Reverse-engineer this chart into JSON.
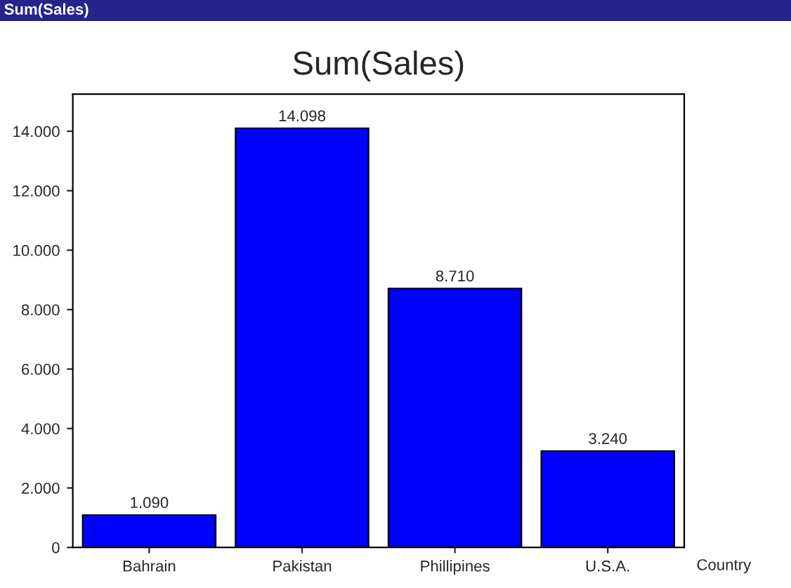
{
  "chart_data": {
    "type": "bar",
    "title": "Sum(Sales)",
    "annotations": [
      "Sum(Sales)"
    ],
    "xlabel": "Country",
    "categories": [
      "Bahrain",
      "Pakistan",
      "Phillipines",
      "U.S.A."
    ],
    "values": [
      1090,
      14098,
      8710,
      3240
    ],
    "value_labels": [
      "1.090",
      "14.098",
      "8.710",
      "3.240"
    ],
    "color": "#0000ff",
    "ylim": [
      0,
      15250
    ],
    "yticks": [
      {
        "value": 0,
        "label": "0"
      },
      {
        "value": 2000,
        "label": "2.000"
      },
      {
        "value": 4000,
        "label": "4.000"
      },
      {
        "value": 6000,
        "label": "6.000"
      },
      {
        "value": 8000,
        "label": "8.000"
      },
      {
        "value": 10000,
        "label": "10.000"
      },
      {
        "value": 12000,
        "label": "12.000"
      },
      {
        "value": 14000,
        "label": "14.000"
      }
    ]
  }
}
